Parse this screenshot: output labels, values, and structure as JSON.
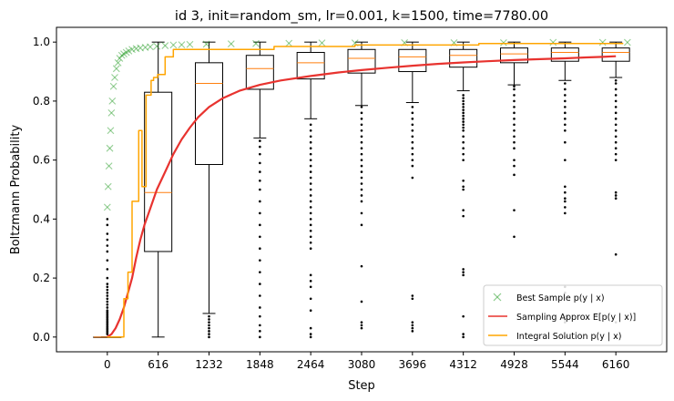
{
  "chart_data": {
    "type": "box",
    "title": "id 3, init=random_sm, lr=0.001, k=1500, time=7780.00",
    "xlabel": "Step",
    "ylabel": "Boltzmann Probability",
    "xlim": [
      -616,
      6776
    ],
    "ylim": [
      -0.05,
      1.05
    ],
    "xticks": [
      0,
      616,
      1232,
      1848,
      2464,
      3080,
      3696,
      4312,
      4928,
      5544,
      6160
    ],
    "yticks": [
      0.0,
      0.2,
      0.4,
      0.6,
      0.8,
      1.0
    ],
    "grid": false,
    "legend_position": "lower-right",
    "legend": [
      {
        "label": "Best Sample p(y | x)",
        "marker": "x",
        "color": "#2ca02c"
      },
      {
        "label": "Sampling Approx E[p(y | x)]",
        "marker": "line",
        "color": "#e8332f"
      },
      {
        "label": "Integral Solution p(y | x)",
        "marker": "line",
        "color": "#ffa500"
      }
    ],
    "boxes": [
      {
        "x": 0,
        "q1": 0.0,
        "median": 0.0,
        "q3": 0.0,
        "whislo": 0.0,
        "whishi": 0.0,
        "fliers": [
          0.01,
          0.015,
          0.02,
          0.025,
          0.03,
          0.035,
          0.04,
          0.045,
          0.05,
          0.055,
          0.06,
          0.065,
          0.07,
          0.075,
          0.08,
          0.085,
          0.09,
          0.1,
          0.11,
          0.12,
          0.13,
          0.14,
          0.15,
          0.16,
          0.17,
          0.18,
          0.2,
          0.23,
          0.26,
          0.29,
          0.31,
          0.33,
          0.35,
          0.38,
          0.4
        ]
      },
      {
        "x": 616,
        "q1": 0.29,
        "median": 0.49,
        "q3": 0.83,
        "whislo": 0.0,
        "whishi": 1.0,
        "fliers": []
      },
      {
        "x": 1232,
        "q1": 0.585,
        "median": 0.86,
        "q3": 0.93,
        "whislo": 0.08,
        "whishi": 1.0,
        "fliers": [
          0.0,
          0.01,
          0.02,
          0.03,
          0.04,
          0.05,
          0.06,
          0.07
        ]
      },
      {
        "x": 1848,
        "q1": 0.84,
        "median": 0.91,
        "q3": 0.955,
        "whislo": 0.675,
        "whishi": 1.0,
        "fliers": [
          0.0,
          0.02,
          0.04,
          0.07,
          0.1,
          0.14,
          0.18,
          0.22,
          0.26,
          0.3,
          0.34,
          0.38,
          0.42,
          0.46,
          0.5,
          0.53,
          0.56,
          0.59,
          0.62,
          0.645,
          0.665
        ]
      },
      {
        "x": 2464,
        "q1": 0.875,
        "median": 0.93,
        "q3": 0.965,
        "whislo": 0.74,
        "whishi": 1.0,
        "fliers": [
          0.0,
          0.01,
          0.03,
          0.09,
          0.13,
          0.17,
          0.19,
          0.21,
          0.3,
          0.32,
          0.34,
          0.36,
          0.38,
          0.4,
          0.42,
          0.44,
          0.46,
          0.48,
          0.5,
          0.52,
          0.54,
          0.56,
          0.58,
          0.6,
          0.62,
          0.64,
          0.66,
          0.68,
          0.7,
          0.72
        ]
      },
      {
        "x": 3080,
        "q1": 0.895,
        "median": 0.945,
        "q3": 0.975,
        "whislo": 0.785,
        "whishi": 1.0,
        "fliers": [
          0.03,
          0.04,
          0.05,
          0.12,
          0.24,
          0.38,
          0.42,
          0.46,
          0.48,
          0.5,
          0.52,
          0.54,
          0.56,
          0.58,
          0.6,
          0.62,
          0.64,
          0.66,
          0.68,
          0.7,
          0.72,
          0.74,
          0.76,
          0.78
        ]
      },
      {
        "x": 3696,
        "q1": 0.9,
        "median": 0.95,
        "q3": 0.975,
        "whislo": 0.795,
        "whishi": 1.0,
        "fliers": [
          0.02,
          0.03,
          0.04,
          0.05,
          0.13,
          0.14,
          0.54,
          0.58,
          0.6,
          0.62,
          0.64,
          0.66,
          0.68,
          0.7,
          0.72,
          0.74,
          0.76,
          0.78
        ]
      },
      {
        "x": 4312,
        "q1": 0.915,
        "median": 0.955,
        "q3": 0.975,
        "whislo": 0.835,
        "whishi": 1.0,
        "fliers": [
          0.0,
          0.01,
          0.07,
          0.21,
          0.22,
          0.23,
          0.41,
          0.43,
          0.5,
          0.51,
          0.53,
          0.6,
          0.62,
          0.64,
          0.66,
          0.68,
          0.7,
          0.71,
          0.72,
          0.73,
          0.74,
          0.75,
          0.76,
          0.77,
          0.78,
          0.79,
          0.8,
          0.81,
          0.82
        ]
      },
      {
        "x": 4928,
        "q1": 0.93,
        "median": 0.96,
        "q3": 0.98,
        "whislo": 0.855,
        "whishi": 1.0,
        "fliers": [
          0.34,
          0.43,
          0.55,
          0.58,
          0.6,
          0.64,
          0.66,
          0.68,
          0.7,
          0.72,
          0.74,
          0.76,
          0.78,
          0.8,
          0.82,
          0.84,
          0.85
        ]
      },
      {
        "x": 5544,
        "q1": 0.935,
        "median": 0.965,
        "q3": 0.98,
        "whislo": 0.87,
        "whishi": 1.0,
        "fliers": [
          0.0,
          0.05,
          0.06,
          0.07,
          0.15,
          0.17,
          0.42,
          0.44,
          0.46,
          0.47,
          0.49,
          0.51,
          0.6,
          0.66,
          0.7,
          0.72,
          0.74,
          0.76,
          0.78,
          0.8,
          0.82,
          0.84,
          0.86
        ]
      },
      {
        "x": 6160,
        "q1": 0.935,
        "median": 0.965,
        "q3": 0.98,
        "whislo": 0.88,
        "whishi": 1.0,
        "fliers": [
          0.0,
          0.05,
          0.28,
          0.47,
          0.48,
          0.49,
          0.6,
          0.62,
          0.64,
          0.66,
          0.68,
          0.7,
          0.72,
          0.74,
          0.76,
          0.78,
          0.8,
          0.82,
          0.84,
          0.86,
          0.87
        ]
      }
    ],
    "series": [
      {
        "name": "Best Sample p(y | x)",
        "type": "scatter",
        "color": "#2ca02c",
        "x": [
          0,
          10,
          20,
          30,
          40,
          50,
          60,
          75,
          90,
          110,
          130,
          150,
          175,
          200,
          230,
          260,
          300,
          350,
          400,
          460,
          520,
          600,
          700,
          800,
          900,
          1000,
          1200,
          1500,
          1800,
          2200,
          2600,
          3000,
          3600,
          4200,
          4800,
          5400,
          6000,
          6300
        ],
        "y": [
          0.44,
          0.51,
          0.58,
          0.64,
          0.7,
          0.76,
          0.8,
          0.85,
          0.88,
          0.91,
          0.93,
          0.945,
          0.955,
          0.96,
          0.965,
          0.97,
          0.975,
          0.978,
          0.98,
          0.982,
          0.984,
          0.986,
          0.988,
          0.99,
          0.991,
          0.992,
          0.993,
          0.994,
          0.995,
          0.996,
          0.997,
          0.997,
          0.998,
          0.998,
          0.998,
          0.999,
          0.999,
          0.999
        ]
      },
      {
        "name": "Sampling Approx E[p(y | x)]",
        "type": "line",
        "color": "#e8332f",
        "x": [
          0,
          50,
          100,
          150,
          200,
          250,
          300,
          350,
          400,
          450,
          500,
          600,
          700,
          800,
          900,
          1000,
          1100,
          1232,
          1400,
          1600,
          1848,
          2100,
          2464,
          2800,
          3080,
          3400,
          3696,
          4000,
          4312,
          4600,
          4928,
          5200,
          5544,
          5800,
          6000,
          6160
        ],
        "y": [
          0.0,
          0.01,
          0.03,
          0.06,
          0.1,
          0.15,
          0.2,
          0.27,
          0.33,
          0.38,
          0.42,
          0.5,
          0.56,
          0.62,
          0.67,
          0.71,
          0.745,
          0.78,
          0.81,
          0.835,
          0.855,
          0.87,
          0.885,
          0.897,
          0.905,
          0.913,
          0.92,
          0.926,
          0.931,
          0.935,
          0.939,
          0.942,
          0.945,
          0.948,
          0.95,
          0.952
        ]
      },
      {
        "name": "Integral Solution p(y | x)",
        "type": "step",
        "color": "#ffa500",
        "x": [
          0,
          200,
          200,
          250,
          250,
          300,
          300,
          380,
          380,
          420,
          420,
          470,
          470,
          530,
          530,
          560,
          560,
          610,
          610,
          700,
          700,
          800,
          800,
          2020,
          2020,
          3000,
          3000,
          4500,
          4500,
          6250
        ],
        "y": [
          0.0,
          0.0,
          0.13,
          0.13,
          0.22,
          0.22,
          0.46,
          0.46,
          0.7,
          0.7,
          0.51,
          0.51,
          0.82,
          0.82,
          0.87,
          0.87,
          0.88,
          0.88,
          0.89,
          0.89,
          0.95,
          0.95,
          0.975,
          0.975,
          0.985,
          0.985,
          0.99,
          0.99,
          0.995,
          0.995
        ]
      }
    ]
  }
}
